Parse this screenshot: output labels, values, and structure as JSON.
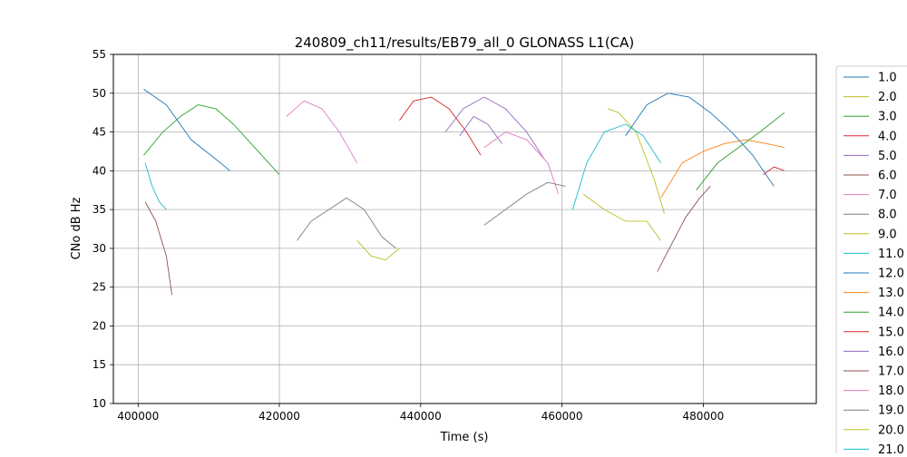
{
  "chart_data": {
    "type": "line",
    "title": "240809_ch11/results/EB79_all_0 GLONASS L1(CA)",
    "xlabel": "Time (s)",
    "ylabel": "CNo dB Hz",
    "xlim": [
      396500,
      496000
    ],
    "ylim": [
      10,
      55
    ],
    "x_ticks": [
      400000,
      420000,
      440000,
      460000,
      480000
    ],
    "x_tick_labels": [
      "400000",
      "420000",
      "440000",
      "460000",
      "480000"
    ],
    "y_ticks": [
      10,
      15,
      20,
      25,
      30,
      35,
      40,
      45,
      50,
      55
    ],
    "y_tick_labels": [
      "10",
      "15",
      "20",
      "25",
      "30",
      "35",
      "40",
      "45",
      "50",
      "55"
    ],
    "grid": true,
    "legend_placement": "outside-right",
    "series": [
      {
        "name": "1.0",
        "color": "#1f77b4",
        "points": [
          [
            400800,
            50.5
          ],
          [
            404000,
            48.5
          ],
          [
            407500,
            44
          ],
          [
            411000,
            41.5
          ],
          [
            413000,
            40
          ]
        ]
      },
      {
        "name": "2.0",
        "color": "#bcbd22",
        "points": [
          [
            466500,
            48
          ],
          [
            468000,
            47.5
          ],
          [
            470500,
            45
          ],
          [
            473000,
            39
          ],
          [
            474500,
            34.5
          ]
        ]
      },
      {
        "name": "3.0",
        "color": "#2ca02c",
        "points": [
          [
            400800,
            42
          ],
          [
            403500,
            45
          ],
          [
            406000,
            47
          ],
          [
            408500,
            48.5
          ],
          [
            411000,
            48
          ],
          [
            413500,
            46
          ],
          [
            416000,
            43.5
          ],
          [
            418500,
            41
          ],
          [
            420000,
            39.5
          ]
        ]
      },
      {
        "name": "4.0",
        "color": "#d62728",
        "points": [
          [
            437000,
            46.5
          ],
          [
            439000,
            49
          ],
          [
            441500,
            49.5
          ],
          [
            444000,
            48
          ],
          [
            446500,
            45
          ],
          [
            448500,
            42
          ]
        ]
      },
      {
        "name": "5.0",
        "color": "#9467bd",
        "points": [
          [
            443500,
            45
          ],
          [
            446000,
            48
          ],
          [
            449000,
            49.5
          ],
          [
            452000,
            48
          ],
          [
            455000,
            45
          ],
          [
            457500,
            41.5
          ]
        ]
      },
      {
        "name": "6.0",
        "color": "#8c564b",
        "points": [
          [
            401000,
            36
          ],
          [
            402500,
            33.5
          ],
          [
            404000,
            29
          ],
          [
            404800,
            24
          ]
        ]
      },
      {
        "name": "7.0",
        "color": "#e377c2",
        "points": [
          [
            421000,
            47
          ],
          [
            423500,
            49
          ],
          [
            426000,
            48
          ],
          [
            428500,
            45
          ],
          [
            431000,
            41
          ]
        ]
      },
      {
        "name": "8.0",
        "color": "#7f7f7f",
        "points": [
          [
            422500,
            31
          ],
          [
            424500,
            33.5
          ],
          [
            427000,
            35
          ],
          [
            429500,
            36.5
          ],
          [
            432000,
            35
          ],
          [
            434500,
            31.5
          ],
          [
            436500,
            30
          ]
        ]
      },
      {
        "name": "9.0",
        "color": "#bcbd22",
        "points": [
          [
            431000,
            31
          ],
          [
            433000,
            29
          ],
          [
            435000,
            28.5
          ],
          [
            437000,
            30
          ]
        ]
      },
      {
        "name": "11.0",
        "color": "#17becf",
        "points": [
          [
            401000,
            41
          ],
          [
            402000,
            38
          ],
          [
            403000,
            36
          ],
          [
            404000,
            35
          ]
        ]
      },
      {
        "name": "12.0",
        "color": "#1f77b4",
        "points": [
          [
            469000,
            44.5
          ],
          [
            472000,
            48.5
          ],
          [
            475000,
            50
          ],
          [
            478000,
            49.5
          ],
          [
            481000,
            47.5
          ],
          [
            484000,
            45
          ],
          [
            487000,
            42
          ],
          [
            490000,
            38
          ]
        ]
      },
      {
        "name": "13.0",
        "color": "#ff7f0e",
        "points": [
          [
            474000,
            36.5
          ],
          [
            477000,
            41
          ],
          [
            480000,
            42.5
          ],
          [
            483000,
            43.5
          ],
          [
            486000,
            44
          ],
          [
            489000,
            43.5
          ],
          [
            491500,
            43
          ]
        ]
      },
      {
        "name": "14.0",
        "color": "#2ca02c",
        "points": [
          [
            479000,
            37.5
          ],
          [
            482000,
            41
          ],
          [
            485000,
            43
          ],
          [
            488000,
            45
          ],
          [
            491500,
            47.5
          ]
        ]
      },
      {
        "name": "15.0",
        "color": "#d62728",
        "points": [
          [
            488500,
            39.5
          ],
          [
            490000,
            40.5
          ],
          [
            491500,
            40
          ]
        ]
      },
      {
        "name": "16.0",
        "color": "#9467bd",
        "points": [
          [
            445500,
            44.5
          ],
          [
            447500,
            47
          ],
          [
            449500,
            46
          ],
          [
            451500,
            43.5
          ]
        ]
      },
      {
        "name": "17.0",
        "color": "#8c564b",
        "points": [
          [
            473500,
            27
          ],
          [
            475500,
            30.5
          ],
          [
            477500,
            34
          ],
          [
            479500,
            36.5
          ],
          [
            481000,
            38
          ]
        ]
      },
      {
        "name": "18.0",
        "color": "#e377c2",
        "points": [
          [
            449000,
            43
          ],
          [
            452000,
            45
          ],
          [
            455000,
            44
          ],
          [
            458000,
            41
          ],
          [
            459500,
            37
          ]
        ]
      },
      {
        "name": "19.0",
        "color": "#7f7f7f",
        "points": [
          [
            449000,
            33
          ],
          [
            452000,
            35
          ],
          [
            455000,
            37
          ],
          [
            458000,
            38.5
          ],
          [
            460500,
            38
          ]
        ]
      },
      {
        "name": "20.0",
        "color": "#bcbd22",
        "points": [
          [
            463000,
            37
          ],
          [
            466000,
            35
          ],
          [
            469000,
            33.5
          ],
          [
            472000,
            33.5
          ],
          [
            474000,
            31
          ]
        ]
      },
      {
        "name": "21.0",
        "color": "#17becf",
        "points": [
          [
            461500,
            35
          ],
          [
            463500,
            41
          ],
          [
            466000,
            45
          ],
          [
            469000,
            46
          ],
          [
            471500,
            44.5
          ],
          [
            474000,
            41
          ]
        ]
      }
    ]
  }
}
